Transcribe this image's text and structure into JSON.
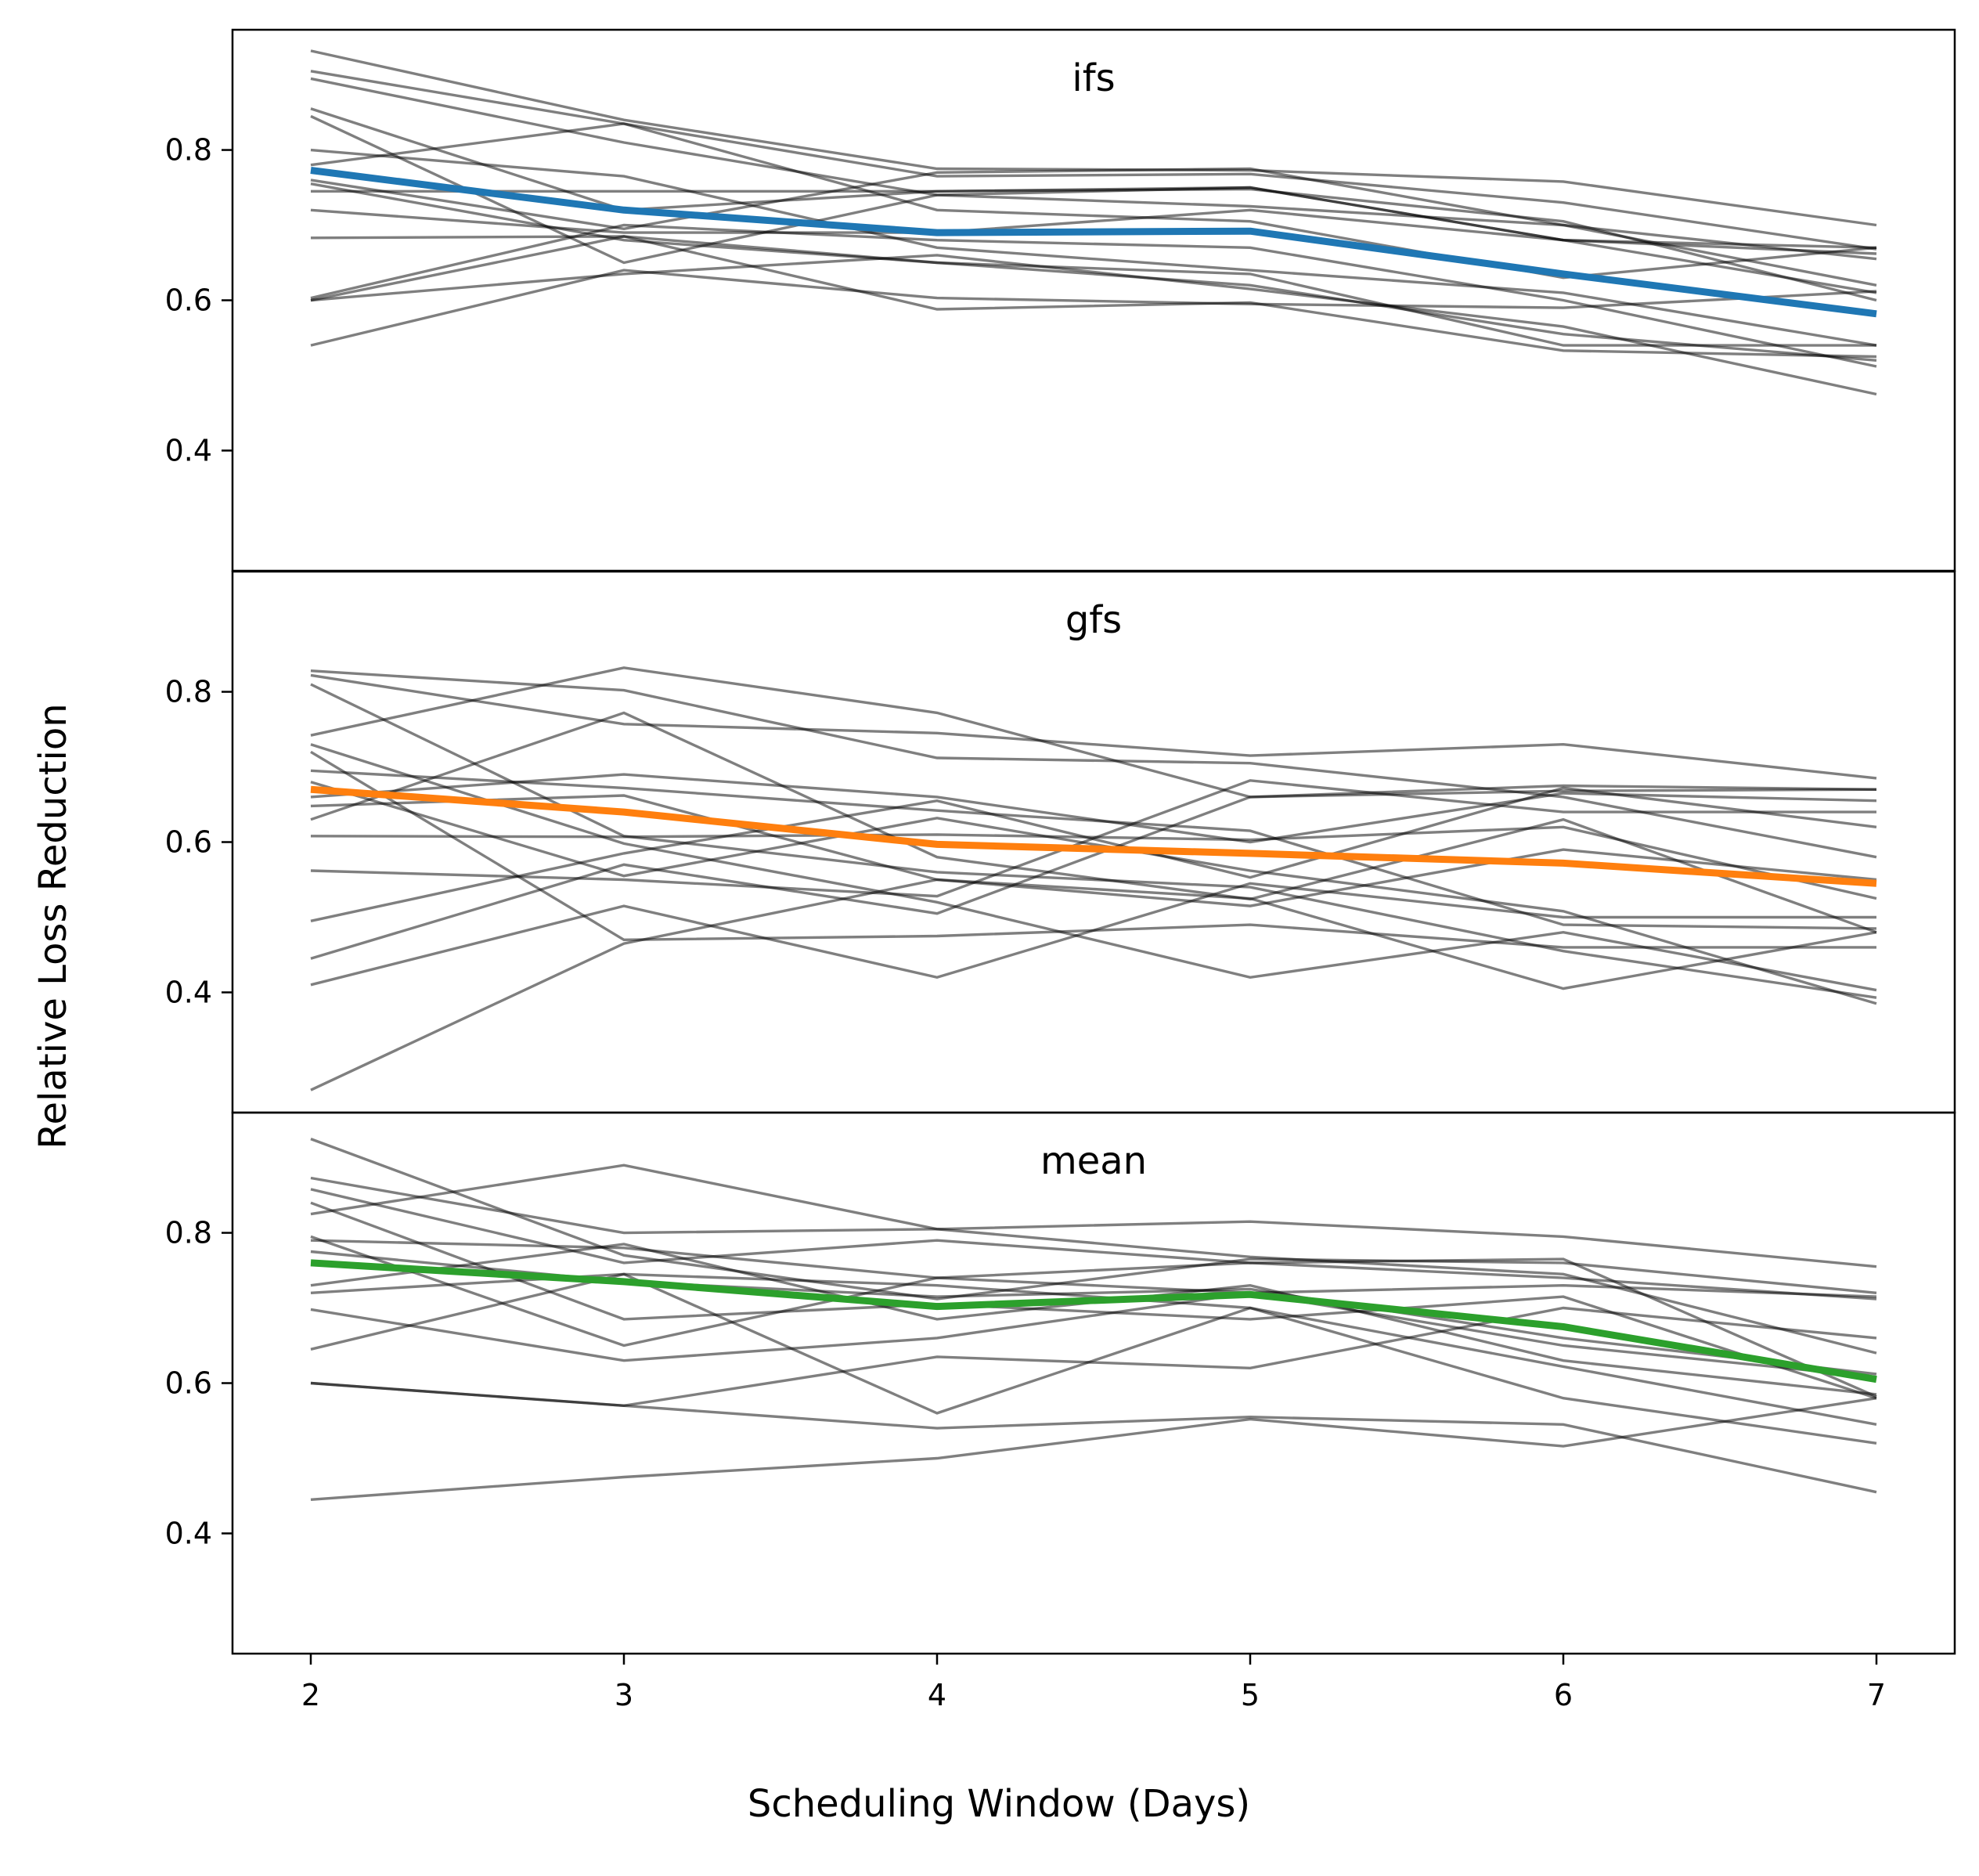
{
  "chart_data": {
    "type": "line",
    "xlabel": "Scheduling Window (Days)",
    "ylabel": "Relative Loss Reduction",
    "x": [
      2,
      3,
      4,
      5,
      6,
      7
    ],
    "xlim": [
      1.75,
      7.25
    ],
    "ylim": [
      0.24,
      0.96
    ],
    "xticks": [
      "2",
      "3",
      "4",
      "5",
      "6",
      "7"
    ],
    "yticks": [
      "0.4",
      "0.6",
      "0.8"
    ],
    "ytick_values": [
      0.4,
      0.6,
      0.8
    ],
    "sharex": true,
    "grid": false,
    "background_line_color": "#000000",
    "background_line_opacity": 0.5,
    "panels": [
      {
        "title": "ifs",
        "highlight": {
          "color": "#1f77b4",
          "values": [
            0.773,
            0.72,
            0.69,
            0.692,
            0.635,
            0.582
          ]
        },
        "lines": [
          [
            0.932,
            0.84,
            0.775,
            0.773,
            0.758,
            0.7
          ],
          [
            0.905,
            0.835,
            0.765,
            0.768,
            0.73,
            0.668
          ],
          [
            0.895,
            0.81,
            0.74,
            0.725,
            0.7,
            0.62
          ],
          [
            0.855,
            0.72,
            0.745,
            0.748,
            0.705,
            0.6
          ],
          [
            0.845,
            0.65,
            0.74,
            0.75,
            0.68,
            0.67
          ],
          [
            0.8,
            0.765,
            0.67,
            0.64,
            0.61,
            0.54
          ],
          [
            0.78,
            0.835,
            0.72,
            0.705,
            0.63,
            0.67
          ],
          [
            0.76,
            0.695,
            0.77,
            0.775,
            0.7,
            0.655
          ],
          [
            0.745,
            0.745,
            0.745,
            0.75,
            0.68,
            0.662
          ],
          [
            0.72,
            0.69,
            0.69,
            0.72,
            0.68,
            0.61
          ],
          [
            0.683,
            0.685,
            0.65,
            0.62,
            0.555,
            0.52
          ],
          [
            0.603,
            0.7,
            0.68,
            0.67,
            0.6,
            0.512
          ],
          [
            0.6,
            0.635,
            0.66,
            0.615,
            0.565,
            0.475
          ],
          [
            0.54,
            0.64,
            0.603,
            0.595,
            0.59,
            0.612
          ],
          [
            0.6,
            0.685,
            0.588,
            0.597,
            0.533,
            0.525
          ],
          [
            0.755,
            0.68,
            0.65,
            0.635,
            0.54,
            0.54
          ]
        ]
      },
      {
        "title": "gfs",
        "highlight": {
          "color": "#ff7f0e",
          "values": [
            0.67,
            0.64,
            0.597,
            0.585,
            0.572,
            0.545
          ]
        },
        "lines": [
          [
            0.828,
            0.802,
            0.712,
            0.705,
            0.66,
            0.58
          ],
          [
            0.822,
            0.757,
            0.745,
            0.715,
            0.73,
            0.685
          ],
          [
            0.81,
            0.608,
            0.56,
            0.54,
            0.455,
            0.393
          ],
          [
            0.742,
            0.832,
            0.772,
            0.66,
            0.675,
            0.67
          ],
          [
            0.73,
            0.598,
            0.52,
            0.42,
            0.48,
            0.403
          ],
          [
            0.72,
            0.47,
            0.475,
            0.49,
            0.46,
            0.46
          ],
          [
            0.695,
            0.672,
            0.642,
            0.615,
            0.49,
            0.485
          ],
          [
            0.68,
            0.555,
            0.632,
            0.562,
            0.508,
            0.385
          ],
          [
            0.66,
            0.69,
            0.66,
            0.6,
            0.665,
            0.655
          ],
          [
            0.648,
            0.662,
            0.55,
            0.515,
            0.59,
            0.55
          ],
          [
            0.63,
            0.772,
            0.58,
            0.524,
            0.63,
            0.48
          ],
          [
            0.608,
            0.607,
            0.61,
            0.603,
            0.62,
            0.525
          ],
          [
            0.562,
            0.55,
            0.528,
            0.682,
            0.64,
            0.64
          ],
          [
            0.495,
            0.585,
            0.655,
            0.553,
            0.672,
            0.62
          ],
          [
            0.445,
            0.57,
            0.505,
            0.66,
            0.668,
            0.67
          ],
          [
            0.41,
            0.515,
            0.42,
            0.545,
            0.5,
            0.5
          ],
          [
            0.27,
            0.465,
            0.55,
            0.525,
            0.405,
            0.48
          ]
        ]
      },
      {
        "title": "mean",
        "highlight": {
          "color": "#2ca02c",
          "values": [
            0.76,
            0.735,
            0.702,
            0.718,
            0.675,
            0.605
          ]
        },
        "lines": [
          [
            0.925,
            0.77,
            0.712,
            0.765,
            0.76,
            0.72
          ],
          [
            0.873,
            0.8,
            0.805,
            0.815,
            0.795,
            0.755
          ],
          [
            0.858,
            0.76,
            0.79,
            0.76,
            0.765,
            0.582
          ],
          [
            0.84,
            0.685,
            0.705,
            0.685,
            0.715,
            0.58
          ],
          [
            0.825,
            0.89,
            0.805,
            0.768,
            0.745,
            0.64
          ],
          [
            0.795,
            0.65,
            0.74,
            0.72,
            0.73,
            0.715
          ],
          [
            0.79,
            0.78,
            0.74,
            0.76,
            0.74,
            0.712
          ],
          [
            0.775,
            0.735,
            0.715,
            0.725,
            0.66,
            0.612
          ],
          [
            0.73,
            0.785,
            0.685,
            0.73,
            0.63,
            0.585
          ],
          [
            0.72,
            0.745,
            0.56,
            0.7,
            0.58,
            0.52
          ],
          [
            0.698,
            0.63,
            0.66,
            0.72,
            0.65,
            0.608
          ],
          [
            0.645,
            0.745,
            0.73,
            0.7,
            0.622,
            0.545
          ],
          [
            0.6,
            0.57,
            0.635,
            0.62,
            0.7,
            0.66
          ],
          [
            0.6,
            0.57,
            0.54,
            0.555,
            0.545,
            0.455
          ],
          [
            0.445,
            0.475,
            0.5,
            0.552,
            0.516,
            0.58
          ]
        ]
      }
    ]
  }
}
